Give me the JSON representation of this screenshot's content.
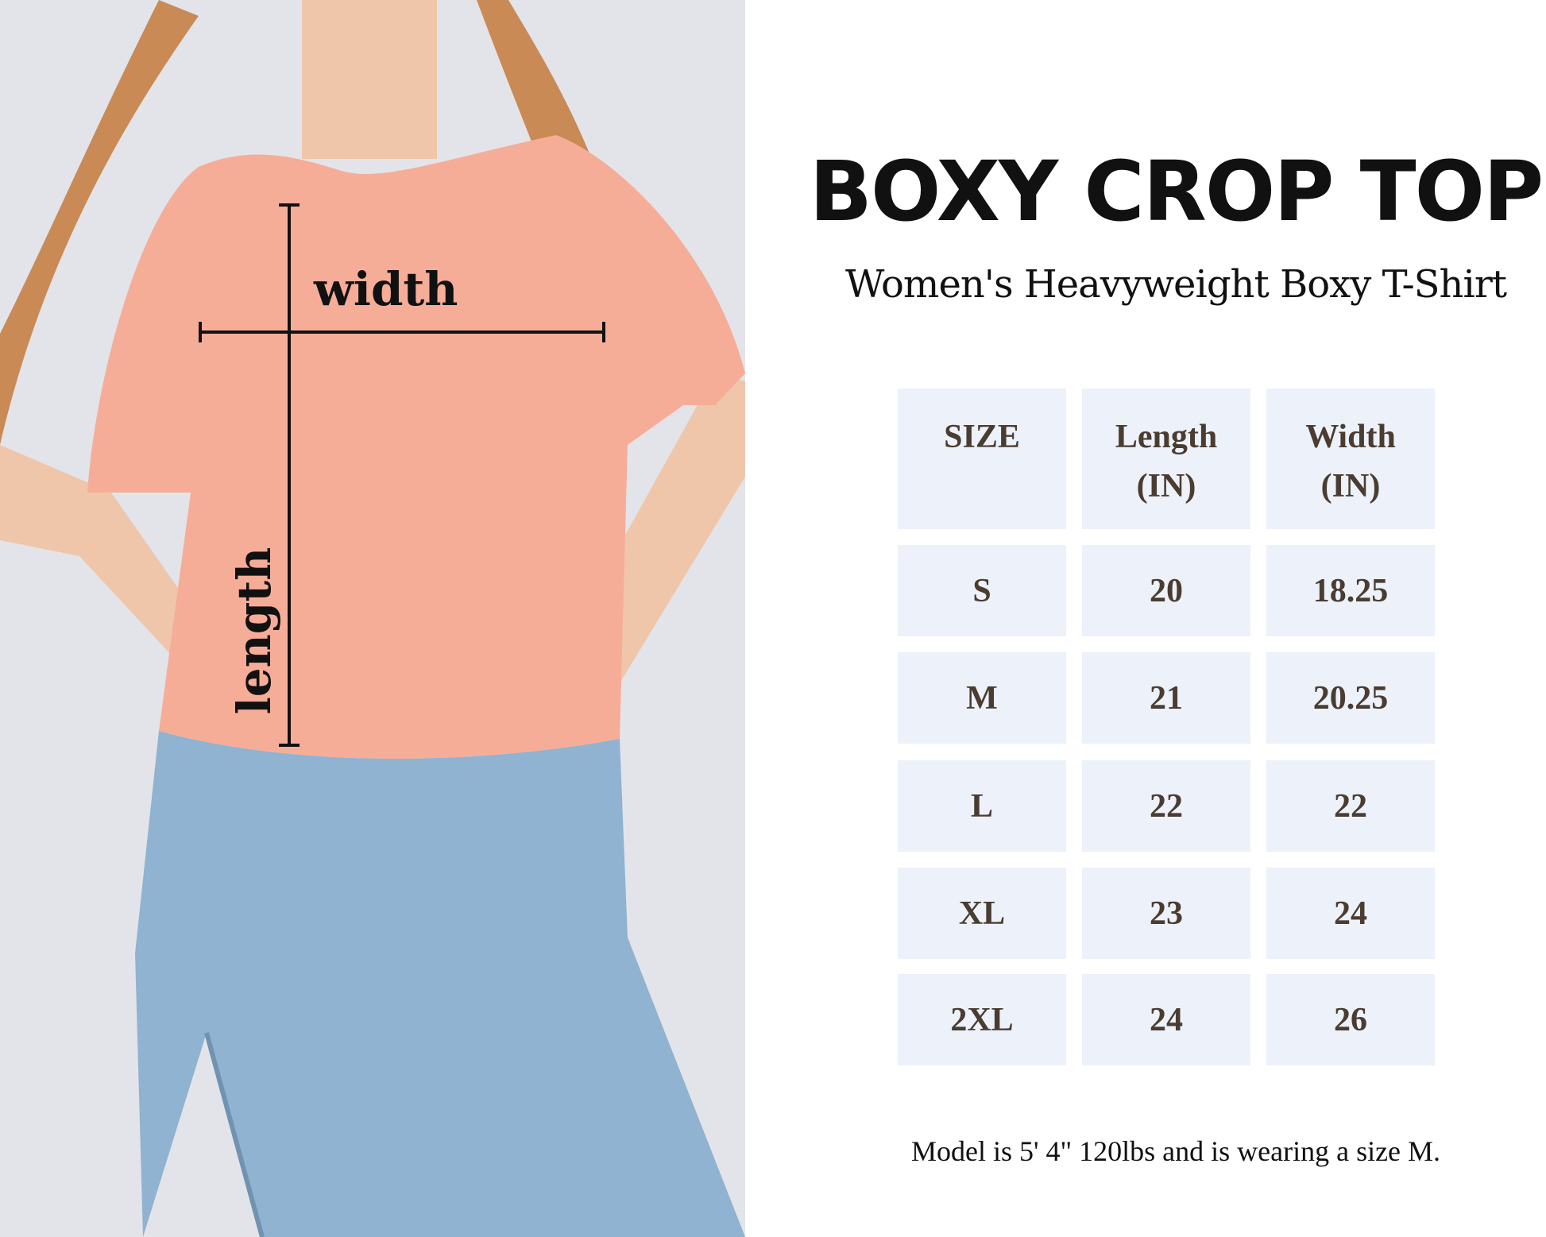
{
  "title": "BOXY CROP TOP",
  "subtitle": "Women's Heavyweight Boxy T-Shirt",
  "photo": {
    "width_label": "width",
    "length_label": "length"
  },
  "table": {
    "headers": [
      {
        "line1": "SIZE",
        "line2": ""
      },
      {
        "line1": "Length",
        "line2": "(IN)"
      },
      {
        "line1": "Width",
        "line2": "(IN)"
      }
    ],
    "rows": [
      [
        "S",
        "20",
        "18.25"
      ],
      [
        "M",
        "21",
        "20.25"
      ],
      [
        "L",
        "22",
        "22"
      ],
      [
        "XL",
        "23",
        "24"
      ],
      [
        "2XL",
        "24",
        "26"
      ]
    ]
  },
  "footer": "Model is 5' 4\" 120lbs and is wearing a size M.",
  "colors": {
    "cell_bg": "#ecf1fa",
    "cell_text": "#4a3c30",
    "shirt": "#f6ad98",
    "jeans": "#8fb3d0"
  }
}
